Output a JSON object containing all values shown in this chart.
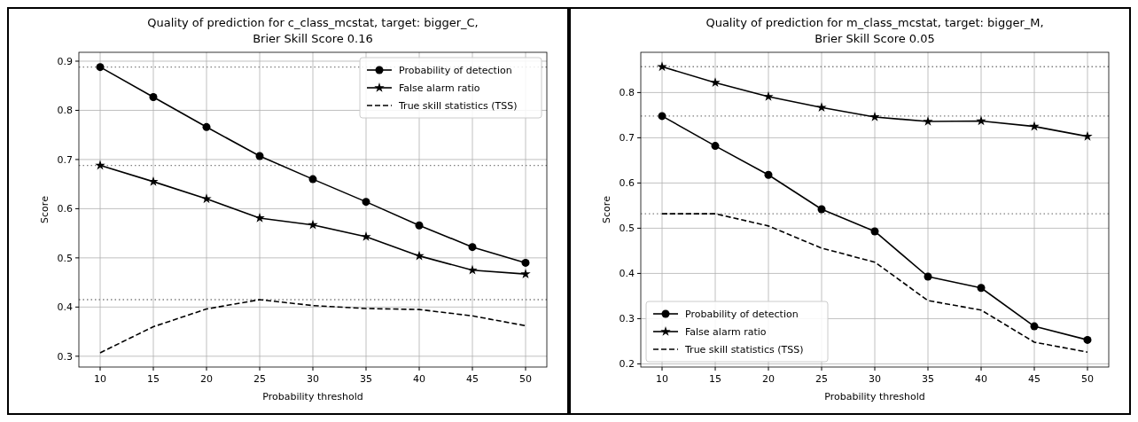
{
  "chart_data": [
    {
      "type": "line",
      "title": "Quality of prediction for c_class_mcstat, target: bigger_C,\nBrier Skill Score 0.16",
      "xlabel": "Probability threshold",
      "ylabel": "Score",
      "x": [
        10,
        15,
        20,
        25,
        30,
        35,
        40,
        45,
        50
      ],
      "xlim": [
        8,
        52
      ],
      "xticks": [
        10,
        15,
        20,
        25,
        30,
        35,
        40,
        45,
        50
      ],
      "ylim": [
        0.278,
        0.918
      ],
      "yticks": [
        {
          "value": 0.3,
          "label": "0.3"
        },
        {
          "value": 0.4,
          "label": "0.4"
        },
        {
          "value": 0.5,
          "label": "0.5"
        },
        {
          "value": 0.6,
          "label": "0.6"
        },
        {
          "value": 0.7,
          "label": "0.7"
        },
        {
          "value": 0.8,
          "label": "0.8"
        },
        {
          "value": 0.9,
          "label": "0.9"
        }
      ],
      "grid": true,
      "legend": "top right",
      "series": [
        {
          "name": "Probability of detection",
          "color": "#000000",
          "marker": "circle",
          "line_style": "solid",
          "values": [
            0.888,
            0.827,
            0.766,
            0.707,
            0.66,
            0.614,
            0.566,
            0.522,
            0.49
          ]
        },
        {
          "name": "False alarm ratio",
          "color": "#000000",
          "marker": "star",
          "line_style": "solid",
          "values": [
            0.688,
            0.655,
            0.62,
            0.581,
            0.567,
            0.543,
            0.504,
            0.475,
            0.467
          ]
        },
        {
          "name": "True skill statistics (TSS)",
          "color": "#000000",
          "marker": "none",
          "line_style": "dashed",
          "values": [
            0.307,
            0.36,
            0.396,
            0.415,
            0.403,
            0.397,
            0.395,
            0.382,
            0.362
          ]
        }
      ],
      "ref_lines": [
        {
          "axis": "y",
          "value": 0.888,
          "color": "#808080",
          "line_style": "dotted"
        },
        {
          "axis": "y",
          "value": 0.688,
          "color": "#808080",
          "line_style": "dotted"
        },
        {
          "axis": "y",
          "value": 0.415,
          "color": "#808080",
          "line_style": "dotted"
        }
      ]
    },
    {
      "type": "line",
      "title": "Quality of prediction for m_class_mcstat, target: bigger_M,\nBrier Skill Score 0.05",
      "xlabel": "Probability threshold",
      "ylabel": "Score",
      "x": [
        10,
        15,
        20,
        25,
        30,
        35,
        40,
        45,
        50
      ],
      "xlim": [
        8,
        52
      ],
      "xticks": [
        10,
        15,
        20,
        25,
        30,
        35,
        40,
        45,
        50
      ],
      "ylim": [
        0.193,
        0.889
      ],
      "yticks": [
        {
          "value": 0.2,
          "label": "0.2"
        },
        {
          "value": 0.3,
          "label": "0.3"
        },
        {
          "value": 0.4,
          "label": "0.4"
        },
        {
          "value": 0.5,
          "label": "0.5"
        },
        {
          "value": 0.6,
          "label": "0.6"
        },
        {
          "value": 0.7,
          "label": "0.7"
        },
        {
          "value": 0.8,
          "label": "0.8"
        }
      ],
      "grid": true,
      "legend": "bottom left",
      "series": [
        {
          "name": "Probability of detection",
          "color": "#000000",
          "marker": "circle",
          "line_style": "solid",
          "values": [
            0.748,
            0.682,
            0.618,
            0.542,
            0.493,
            0.393,
            0.368,
            0.283,
            0.253
          ]
        },
        {
          "name": "False alarm ratio",
          "color": "#000000",
          "marker": "star",
          "line_style": "solid",
          "values": [
            0.857,
            0.822,
            0.791,
            0.767,
            0.746,
            0.736,
            0.737,
            0.725,
            0.703
          ]
        },
        {
          "name": "True skill statistics (TSS)",
          "color": "#000000",
          "marker": "none",
          "line_style": "dashed",
          "values": [
            0.532,
            0.532,
            0.505,
            0.456,
            0.425,
            0.34,
            0.319,
            0.248,
            0.226
          ]
        }
      ],
      "ref_lines": [
        {
          "axis": "y",
          "value": 0.857,
          "color": "#808080",
          "line_style": "dotted"
        },
        {
          "axis": "y",
          "value": 0.748,
          "color": "#808080",
          "line_style": "dotted"
        },
        {
          "axis": "y",
          "value": 0.532,
          "color": "#808080",
          "line_style": "dotted"
        }
      ]
    }
  ]
}
